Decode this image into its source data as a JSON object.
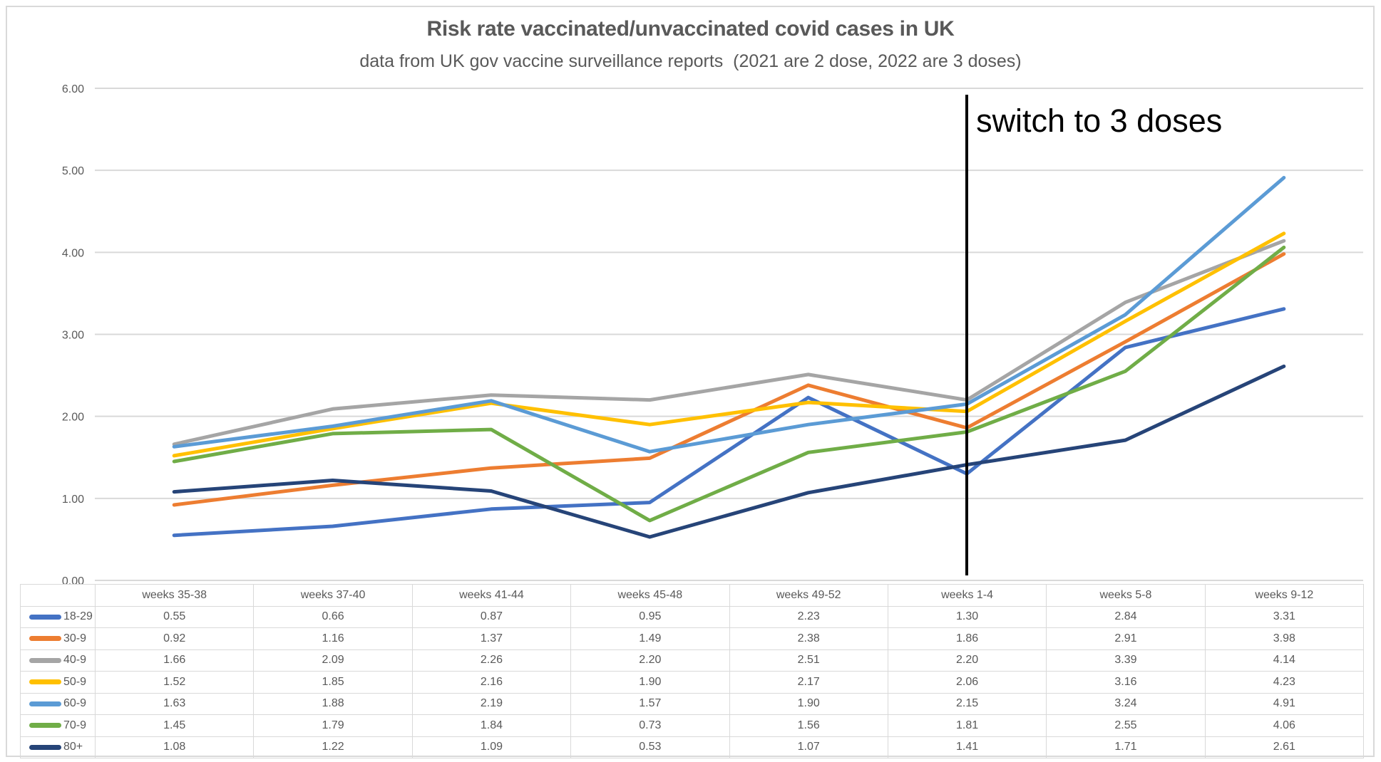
{
  "chart_data": {
    "type": "line",
    "title": "Risk rate vaccinated/unvaccinated covid cases in UK",
    "subtitle": "data from UK gov vaccine surveillance reports  (2021 are 2 dose, 2022 are 3 doses)",
    "categories": [
      "weeks 35-38",
      "weeks 37-40",
      "weeks 41-44",
      "weeks 45-48",
      "weeks 49-52",
      "weeks 1-4",
      "weeks 5-8",
      "weeks 9-12"
    ],
    "series": [
      {
        "name": "18-29",
        "color": "#4472C4",
        "values": [
          0.55,
          0.66,
          0.87,
          0.95,
          2.23,
          1.3,
          2.84,
          3.31
        ]
      },
      {
        "name": "30-9",
        "color": "#ED7D31",
        "values": [
          0.92,
          1.16,
          1.37,
          1.49,
          2.38,
          1.86,
          2.91,
          3.98
        ]
      },
      {
        "name": "40-9",
        "color": "#A5A5A5",
        "values": [
          1.66,
          2.09,
          2.26,
          2.2,
          2.51,
          2.2,
          3.39,
          4.14
        ]
      },
      {
        "name": "50-9",
        "color": "#FFC000",
        "values": [
          1.52,
          1.85,
          2.16,
          1.9,
          2.17,
          2.06,
          3.16,
          4.23
        ]
      },
      {
        "name": "60-9",
        "color": "#5B9BD5",
        "values": [
          1.63,
          1.88,
          2.19,
          1.57,
          1.9,
          2.15,
          3.24,
          4.91
        ]
      },
      {
        "name": "70-9",
        "color": "#70AD47",
        "values": [
          1.45,
          1.79,
          1.84,
          0.73,
          1.56,
          1.81,
          2.55,
          4.06
        ]
      },
      {
        "name": "80+",
        "color": "#264478",
        "values": [
          1.08,
          1.22,
          1.09,
          0.53,
          1.07,
          1.41,
          1.71,
          2.61
        ]
      }
    ],
    "ylim": [
      0,
      6
    ],
    "ytick_labels": [
      "0.00",
      "1.00",
      "2.00",
      "3.00",
      "4.00",
      "5.00",
      "6.00"
    ],
    "grid": true,
    "legend_position": "table-left",
    "value_format": "2dp",
    "annotation": {
      "label": "switch to 3 doses",
      "at_category": "weeks 1-4",
      "line_color": "#000000"
    }
  },
  "colors": {
    "grid": "#D9D9D9",
    "table_border": "#D9D9D9",
    "text_gray": "#595959",
    "annotation_text": "#000000",
    "background": "#FFFFFF"
  }
}
